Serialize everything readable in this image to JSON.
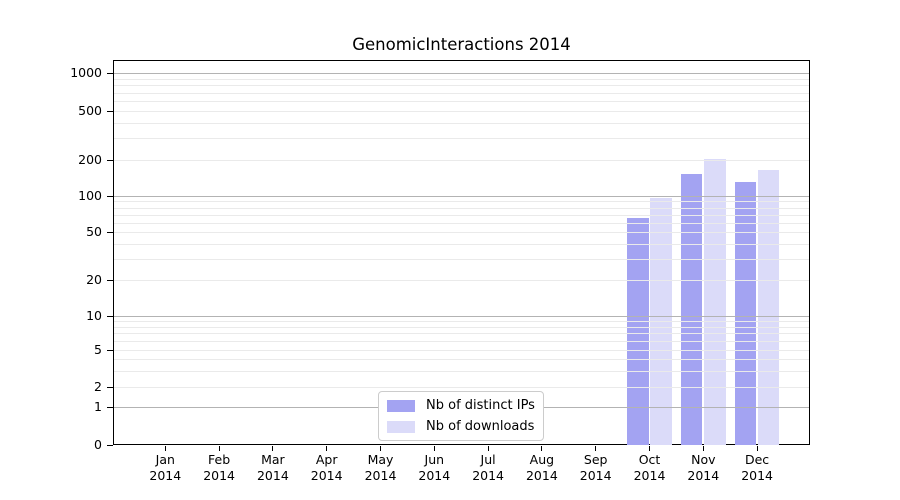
{
  "chart_data": {
    "type": "bar",
    "title": "GenomicInteractions 2014",
    "categories": [
      "Jan",
      "Feb",
      "Mar",
      "Apr",
      "May",
      "Jun",
      "Jul",
      "Aug",
      "Sep",
      "Oct",
      "Nov",
      "Dec"
    ],
    "category_year": "2014",
    "series": [
      {
        "name": "Nb of distinct IPs",
        "color": "#a3a3f2",
        "values": [
          0,
          0,
          0,
          0,
          0,
          0,
          0,
          0,
          0,
          65,
          154,
          132
        ]
      },
      {
        "name": "Nb of downloads",
        "color": "#dbdbf9",
        "values": [
          0,
          0,
          0,
          0,
          0,
          0,
          0,
          0,
          0,
          97,
          205,
          166
        ]
      }
    ],
    "xlabel": "",
    "ylabel": "",
    "y_ticks": [
      0,
      1,
      2,
      5,
      10,
      20,
      50,
      100,
      200,
      500,
      1000
    ],
    "y_scale": "log-like with 0 baseline",
    "ylim": [
      0,
      1300
    ],
    "grid": true,
    "legend_position": "lower center"
  },
  "colors": {
    "bar_distinct_ips": "#a3a3f2",
    "bar_downloads": "#dbdbf9",
    "grid_major": "#b3b3b3",
    "grid_minor": "#eaeaea",
    "axis": "#000000",
    "legend_border": "#cccccc",
    "background": "#ffffff",
    "text": "#000000"
  }
}
